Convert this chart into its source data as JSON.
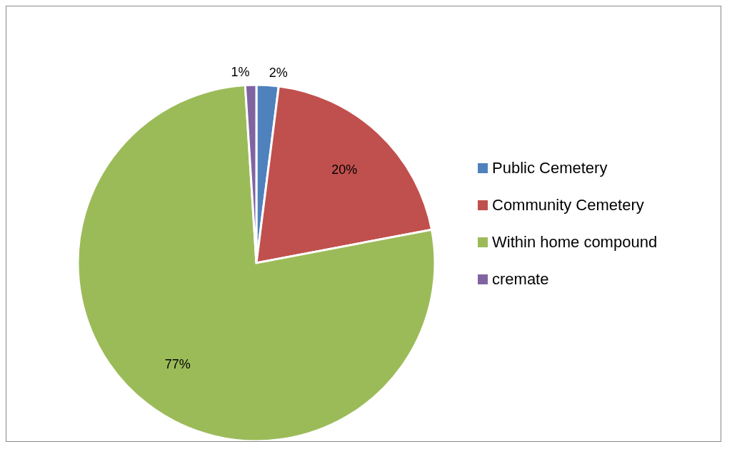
{
  "chart_data": {
    "type": "pie",
    "categories": [
      "Public Cemetery",
      "Community Cemetery",
      "Within home compound",
      "cremate"
    ],
    "values": [
      2,
      20,
      77,
      1
    ],
    "colors": [
      "#4f81bd",
      "#c0504d",
      "#9bbb59",
      "#8064a2"
    ],
    "value_labels": [
      "2%",
      "20%",
      "77%",
      "1%"
    ],
    "legend": "right"
  }
}
